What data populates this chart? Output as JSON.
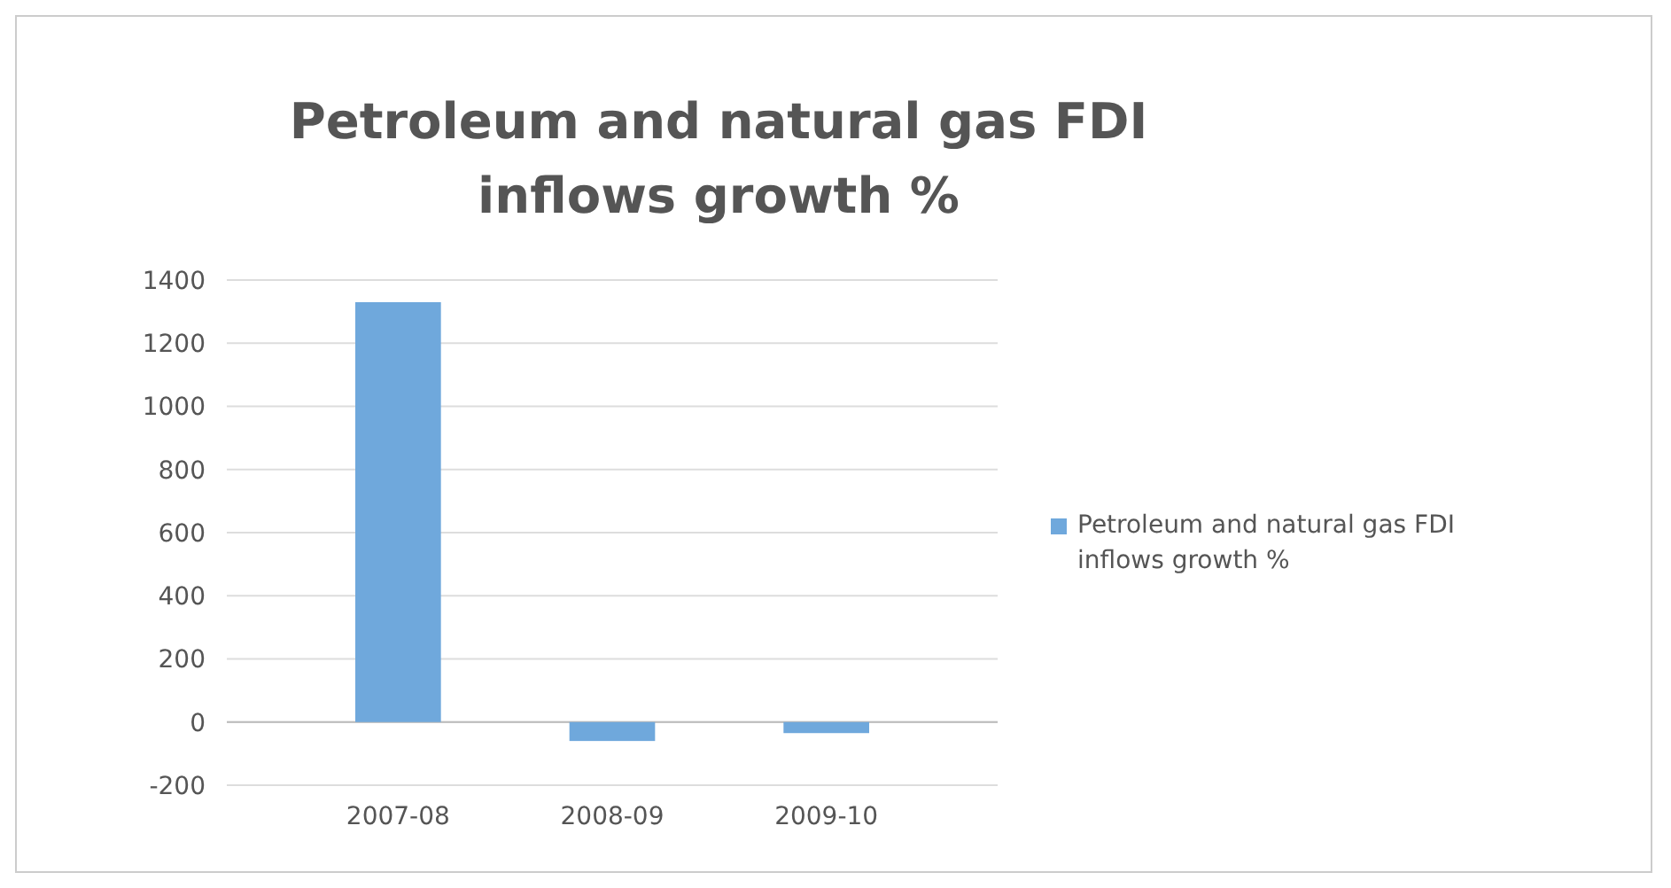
{
  "chart_data": {
    "type": "bar",
    "title": "Petroleum and natural gas FDI inflows growth %",
    "categories": [
      "2007-08",
      "2008-09",
      "2009-10"
    ],
    "series": [
      {
        "name": "Petroleum and natural gas FDI inflows growth %",
        "color": "#6fa8dc",
        "values": [
          1330,
          -60,
          -35
        ]
      }
    ],
    "ylim": [
      -200,
      1400
    ],
    "yticks": [
      -200,
      0,
      200,
      400,
      600,
      800,
      1000,
      1200,
      1400
    ],
    "grid": "y",
    "legend": "right"
  }
}
